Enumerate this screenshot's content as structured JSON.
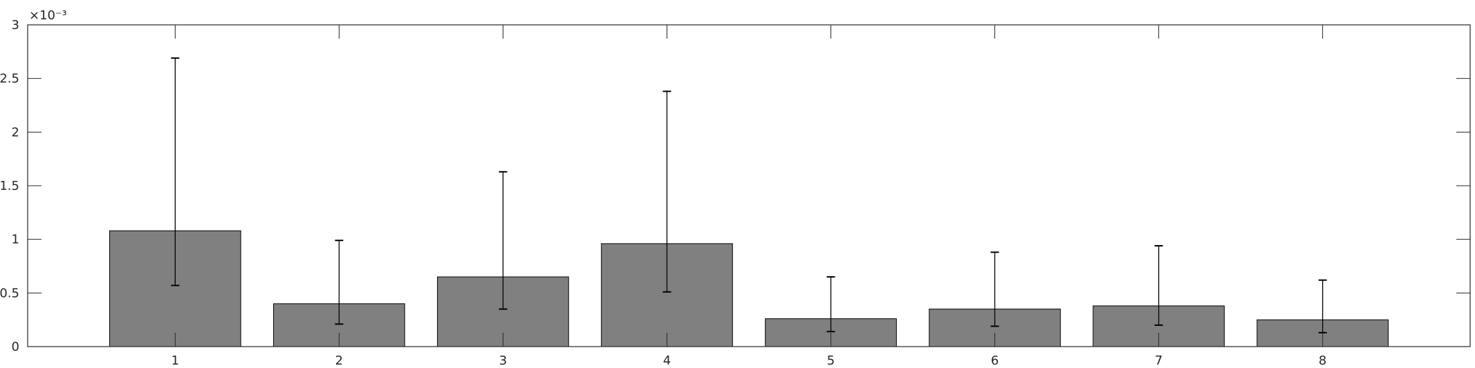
{
  "chart_data": {
    "type": "bar",
    "title": "",
    "xlabel": "",
    "ylabel": "",
    "y_exponent_label": "×10⁻³",
    "categories": [
      "1",
      "2",
      "3",
      "4",
      "5",
      "6",
      "7",
      "8"
    ],
    "series": [
      {
        "values": [
          1.08,
          0.4,
          0.65,
          0.96,
          0.26,
          0.35,
          0.38,
          0.25
        ],
        "error_low": [
          0.57,
          0.21,
          0.35,
          0.51,
          0.14,
          0.19,
          0.2,
          0.13
        ],
        "error_high": [
          2.69,
          0.99,
          1.63,
          2.38,
          0.65,
          0.88,
          0.94,
          0.62
        ]
      }
    ],
    "xlim": [
      0.1,
      8.9
    ],
    "ylim": [
      0,
      3
    ],
    "y_ticks": [
      "0",
      "0.5",
      "1",
      "1.5",
      "2",
      "2.5",
      "3"
    ],
    "y_tick_values": [
      0,
      0.5,
      1,
      1.5,
      2,
      2.5,
      3
    ],
    "bar_color": "#808080",
    "edge_color": "#000000",
    "axis_color": "#262626",
    "grid": false,
    "legend": "none"
  }
}
